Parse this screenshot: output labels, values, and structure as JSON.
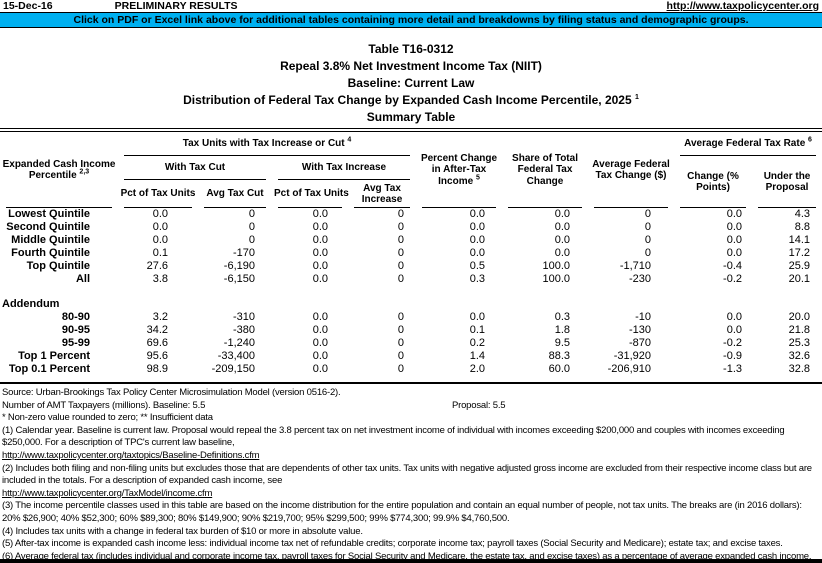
{
  "page_header": {
    "date": "15-Dec-16",
    "status": "PRELIMINARY RESULTS",
    "url": "http://www.taxpolicycenter.org",
    "banner": "Click on PDF or Excel link above for additional tables containing more detail and breakdowns by filing status and demographic groups.",
    "banner_color": "#00B0F0"
  },
  "title": {
    "line1": "Table T16-0312",
    "line2": "Repeal 3.8% Net Investment Income Tax (NIIT)",
    "line3": "Baseline: Current Law",
    "line4": "Distribution of Federal Tax Change by Expanded Cash Income Percentile, 2025",
    "line4_sup": "1",
    "line5": "Summary Table"
  },
  "table": {
    "header": {
      "col1": "Expanded Cash Income Percentile",
      "col1_sup": "2,3",
      "group_tax_units": "Tax Units with Tax Increase or Cut",
      "group_tax_units_sup": "4",
      "with_tax_cut": "With Tax Cut",
      "with_tax_increase": "With Tax Increase",
      "pct_of_tax_units_cut": "Pct of Tax Units",
      "avg_tax_cut": "Avg Tax Cut",
      "pct_of_tax_units_increase": "Pct of Tax Units",
      "avg_tax_increase": "Avg Tax Increase",
      "pct_change_after_tax": "Percent Change in After-Tax Income",
      "pct_change_after_tax_sup": "5",
      "share_total": "Share of Total Federal Tax Change",
      "avg_change": "Average Federal Tax Change ($)",
      "group_avg_rate": "Average Federal Tax Rate",
      "group_avg_rate_sup": "6",
      "rate_change": "Change (% Points)",
      "rate_under_proposal": "Under the Proposal"
    },
    "rows": [
      {
        "label": "Lowest Quintile",
        "cells": [
          "0.0",
          "0",
          "0.0",
          "0",
          "0.0",
          "0.0",
          "0",
          "0.0",
          "4.3"
        ]
      },
      {
        "label": "Second Quintile",
        "cells": [
          "0.0",
          "0",
          "0.0",
          "0",
          "0.0",
          "0.0",
          "0",
          "0.0",
          "8.8"
        ]
      },
      {
        "label": "Middle Quintile",
        "cells": [
          "0.0",
          "0",
          "0.0",
          "0",
          "0.0",
          "0.0",
          "0",
          "0.0",
          "14.1"
        ]
      },
      {
        "label": "Fourth Quintile",
        "cells": [
          "0.1",
          "-170",
          "0.0",
          "0",
          "0.0",
          "0.0",
          "0",
          "0.0",
          "17.2"
        ]
      },
      {
        "label": "Top Quintile",
        "cells": [
          "27.6",
          "-6,190",
          "0.0",
          "0",
          "0.5",
          "100.0",
          "-1,710",
          "-0.4",
          "25.9"
        ]
      },
      {
        "label": "All",
        "cells": [
          "3.8",
          "-6,150",
          "0.0",
          "0",
          "0.3",
          "100.0",
          "-230",
          "-0.2",
          "20.1"
        ]
      }
    ],
    "addendum_label": "Addendum",
    "addendum_rows": [
      {
        "label": "80-90",
        "cells": [
          "3.2",
          "-310",
          "0.0",
          "0",
          "0.0",
          "0.3",
          "-10",
          "0.0",
          "20.0"
        ]
      },
      {
        "label": "90-95",
        "cells": [
          "34.2",
          "-380",
          "0.0",
          "0",
          "0.1",
          "1.8",
          "-130",
          "0.0",
          "21.8"
        ]
      },
      {
        "label": "95-99",
        "cells": [
          "69.6",
          "-1,240",
          "0.0",
          "0",
          "0.2",
          "9.5",
          "-870",
          "-0.2",
          "25.3"
        ]
      },
      {
        "label": "Top 1 Percent",
        "cells": [
          "95.6",
          "-33,400",
          "0.0",
          "0",
          "1.4",
          "88.3",
          "-31,920",
          "-0.9",
          "32.6"
        ]
      },
      {
        "label": "Top 0.1 Percent",
        "cells": [
          "98.9",
          "-209,150",
          "0.0",
          "0",
          "2.0",
          "60.0",
          "-206,910",
          "-1.3",
          "32.8"
        ]
      }
    ]
  },
  "footnotes": {
    "source": "Source: Urban-Brookings Tax Policy Center Microsimulation Model (version 0516-2).",
    "amt_first": "Number of AMT Taxpayers (millions).  Baseline: 5.5",
    "amt_proposal": "Proposal: 5.5",
    "stars": "* Non-zero value rounded to zero; ** Insufficient data",
    "notes": [
      {
        "text": "(1) Calendar year. Baseline is current law. Proposal would repeal the 3.8 percent tax on net investment income of individual with incomes exceeding $200,000 and couples with incomes exceeding $250,000. For a description of TPC's current law baseline,"
      },
      {
        "link": "http://www.taxpolicycenter.org/taxtopics/Baseline-Definitions.cfm"
      },
      {
        "text": "(2) Includes both filing and non-filing units but excludes those that are dependents of other tax units. Tax units with negative adjusted gross income are excluded from their respective income class but are included in the totals. For a description of expanded cash income, see"
      },
      {
        "link": "http://www.taxpolicycenter.org/TaxModel/income.cfm"
      },
      {
        "text": "(3) The income percentile classes used in this table are based on the income distribution for the entire population and contain an equal number of people, not tax units. The breaks are (in 2016 dollars): 20% $26,900; 40% $52,300; 60% $89,300; 80% $149,900; 90% $219,700; 95% $299,500; 99% $774,300; 99.9% $4,760,500."
      },
      {
        "text": "(4) Includes tax units with a change in federal tax burden of $10 or more in absolute value."
      },
      {
        "text": "(5) After-tax income is expanded cash income less: individual income tax net of refundable credits; corporate income tax; payroll taxes (Social Security and Medicare); estate tax; and excise taxes."
      },
      {
        "text": "(6) Average federal tax (includes individual and corporate income tax, payroll taxes for Social Security and Medicare, the estate tax, and excise taxes) as a percentage of average expanded cash income."
      }
    ]
  }
}
